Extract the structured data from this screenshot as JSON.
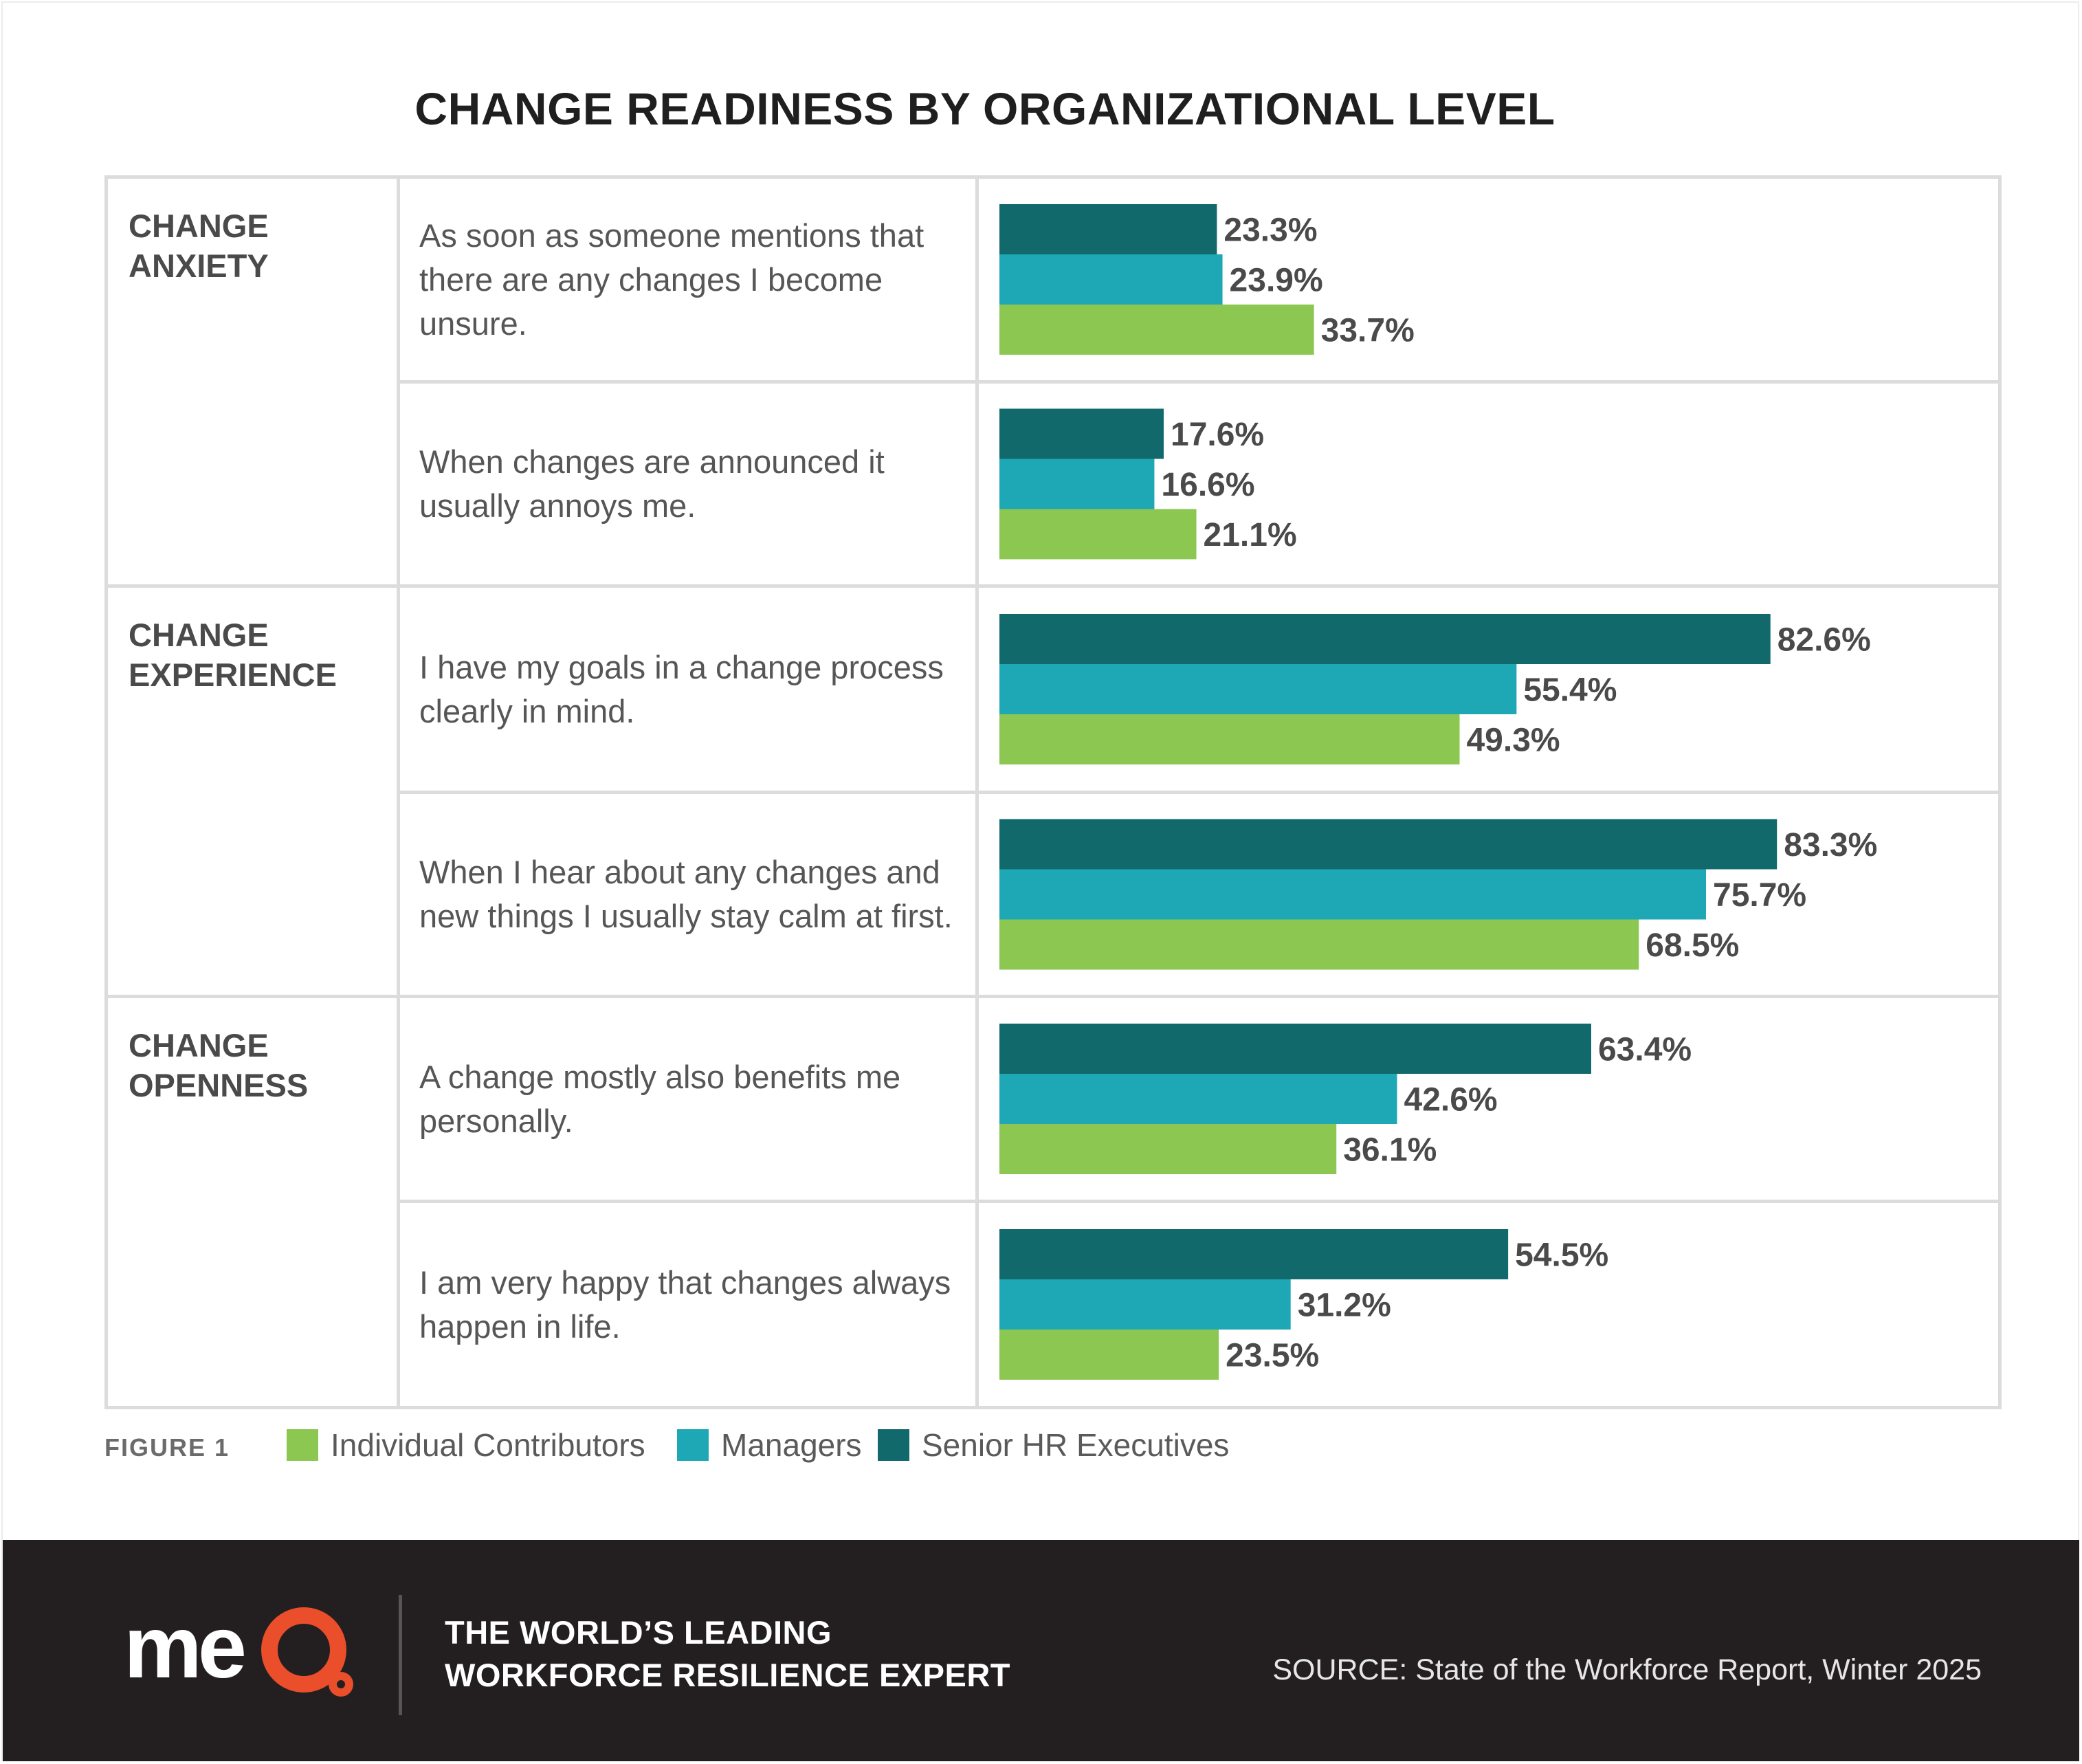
{
  "title": "CHANGE READINESS BY ORGANIZATIONAL LEVEL",
  "colors": {
    "individual_contributors": "#8bc751",
    "managers": "#1ea7b5",
    "senior_hr_executives": "#12696b",
    "footer_background": "#231f20",
    "logo_accent": "#ea4e2a"
  },
  "chart_data": {
    "type": "bar",
    "orientation": "horizontal",
    "title": "CHANGE READINESS BY ORGANIZATIONAL LEVEL",
    "unit": "%",
    "xlim": [
      0,
      100
    ],
    "grid": false,
    "groups": [
      {
        "category": "CHANGE\nANXIETY",
        "questions": [
          {
            "text": "As soon as someone mentions that there are any changes I become unsure.",
            "values": {
              "Senior HR Executives": 23.3,
              "Managers": 23.9,
              "Individual Contributors": 33.7
            },
            "labels": {
              "Senior HR Executives": "23.3%",
              "Managers": "23.9%",
              "Individual Contributors": "33.7%"
            }
          },
          {
            "text": "When changes are announced it usually annoys me.",
            "values": {
              "Senior HR Executives": 17.6,
              "Managers": 16.6,
              "Individual Contributors": 21.1
            },
            "labels": {
              "Senior HR Executives": "17.6%",
              "Managers": "16.6%",
              "Individual Contributors": "21.1%"
            }
          }
        ]
      },
      {
        "category": "CHANGE\nEXPERIENCE",
        "questions": [
          {
            "text": "I have my goals in a change process clearly in mind.",
            "values": {
              "Senior HR Executives": 82.6,
              "Managers": 55.4,
              "Individual Contributors": 49.3
            },
            "labels": {
              "Senior HR Executives": "82.6%",
              "Managers": "55.4%",
              "Individual Contributors": "49.3%"
            }
          },
          {
            "text": "When I hear about any changes and new things I usually stay calm at first.",
            "values": {
              "Senior HR Executives": 83.3,
              "Managers": 75.7,
              "Individual Contributors": 68.5
            },
            "labels": {
              "Senior HR Executives": "83.3%",
              "Managers": "75.7%",
              "Individual Contributors": "68.5%"
            }
          }
        ]
      },
      {
        "category": "CHANGE\nOPENNESS",
        "questions": [
          {
            "text": "A change mostly also benefits me personally.",
            "values": {
              "Senior HR Executives": 63.4,
              "Managers": 42.6,
              "Individual Contributors": 36.1
            },
            "labels": {
              "Senior HR Executives": "63.4%",
              "Managers": "42.6%",
              "Individual Contributors": "36.1%"
            }
          },
          {
            "text": "I am very happy that changes always happen in life.",
            "values": {
              "Senior HR Executives": 54.5,
              "Managers": 31.2,
              "Individual Contributors": 23.5
            },
            "labels": {
              "Senior HR Executives": "54.5%",
              "Managers": "31.2%",
              "Individual Contributors": "23.5%"
            }
          }
        ]
      }
    ],
    "series_order": [
      "Senior HR Executives",
      "Managers",
      "Individual Contributors"
    ],
    "legend": [
      {
        "name": "Individual Contributors",
        "color": "#8bc751"
      },
      {
        "name": "Managers",
        "color": "#1ea7b5"
      },
      {
        "name": "Senior HR Executives",
        "color": "#12696b"
      }
    ],
    "legend_position": "bottom-left"
  },
  "figure_label": "FIGURE 1",
  "footer": {
    "logo_text": "meQ",
    "tagline": "THE WORLD’S LEADING\nWORKFORCE RESILIENCE EXPERT",
    "source": "SOURCE: State of the Workforce Report,  Winter 2025"
  }
}
